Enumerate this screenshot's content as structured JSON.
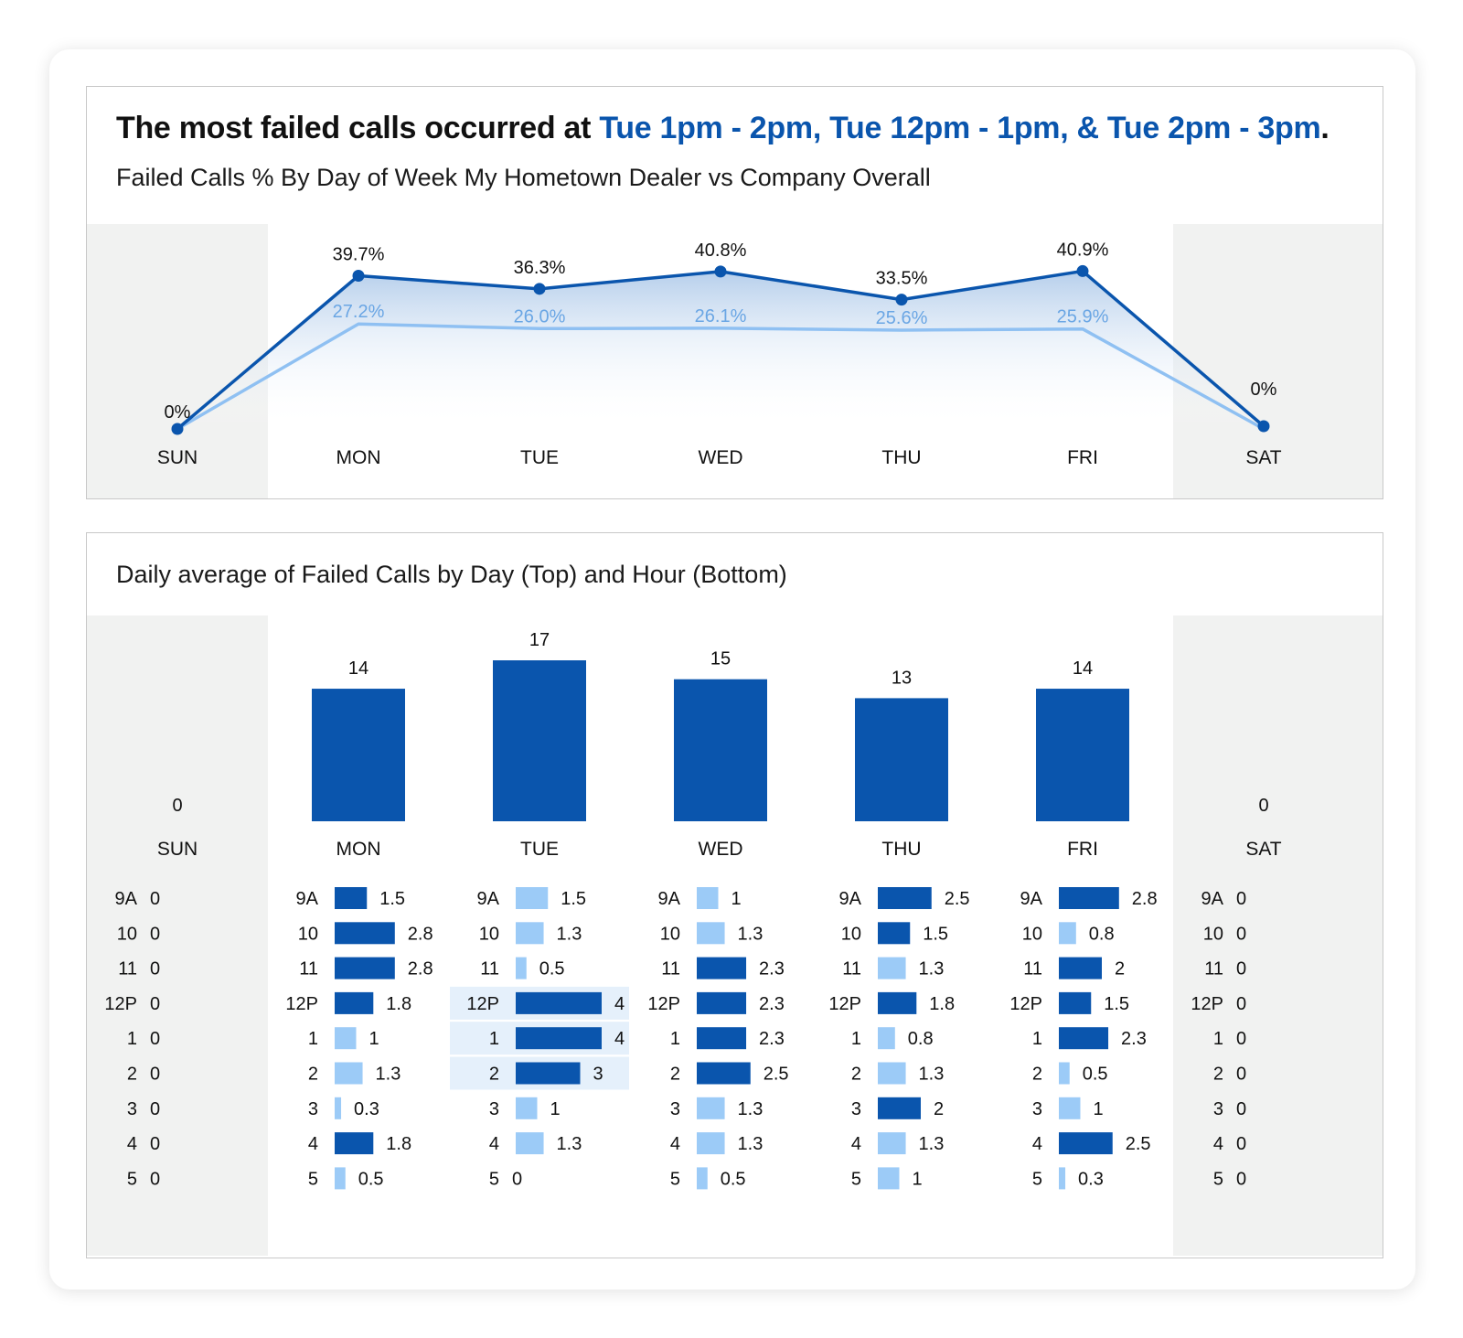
{
  "headline": {
    "prefix": "The most failed calls occurred at ",
    "highlight": "Tue 1pm - 2pm, Tue 12pm - 1pm, & Tue 2pm - 3pm",
    "suffix": "."
  },
  "colors": {
    "dealer": "#0a55ad",
    "company": "#8fc0f2",
    "weekend_band": "#f1f2f1",
    "bar_dark": "#0a55ad",
    "bar_light": "#9ccbf7",
    "highlight_bg": "#e5f0fb",
    "headline_accent": "#0a55ad"
  },
  "chart_data": [
    {
      "type": "line",
      "title": "Failed Calls % By Day of Week My Hometown Dealer vs Company Overall",
      "categories": [
        "SUN",
        "MON",
        "TUE",
        "WED",
        "THU",
        "FRI",
        "SAT"
      ],
      "series": [
        {
          "values": [
            0,
            39.7,
            36.3,
            40.8,
            33.5,
            40.9,
            0
          ],
          "labels": [
            "0%",
            "39.7%",
            "36.3%",
            "40.8%",
            "33.5%",
            "40.9%",
            "0%"
          ]
        },
        {
          "values": [
            0,
            27.2,
            26.0,
            26.1,
            25.6,
            25.9,
            0
          ],
          "labels": [
            "",
            "27.2%",
            "26.0%",
            "26.1%",
            "25.6%",
            "25.9%",
            ""
          ]
        }
      ],
      "weekend_shading": [
        "SUN",
        "SAT"
      ]
    },
    {
      "type": "bar",
      "title": "Daily average of Failed Calls by Day (Top) and Hour (Bottom)",
      "categories": [
        "SUN",
        "MON",
        "TUE",
        "WED",
        "THU",
        "FRI",
        "SAT"
      ],
      "values": [
        0,
        14,
        17,
        15,
        13,
        14,
        0
      ],
      "labels": [
        "0",
        "14",
        "17",
        "15",
        "13",
        "14",
        "0"
      ],
      "hours": [
        "9A",
        "10",
        "11",
        "12P",
        "1",
        "2",
        "3",
        "4",
        "5"
      ],
      "hourly": [
        {
          "day": "SUN",
          "values": [
            0,
            0,
            0,
            0,
            0,
            0,
            0,
            0,
            0
          ],
          "labels": [
            "0",
            "0",
            "0",
            "0",
            "0",
            "0",
            "0",
            "0",
            "0"
          ]
        },
        {
          "day": "MON",
          "values": [
            1.5,
            2.8,
            2.8,
            1.8,
            1,
            1.3,
            0.3,
            1.8,
            0.5
          ],
          "labels": [
            "1.5",
            "2.8",
            "2.8",
            "1.8",
            "1",
            "1.3",
            "0.3",
            "1.8",
            "0.5"
          ]
        },
        {
          "day": "TUE",
          "values": [
            1.5,
            1.3,
            0.5,
            4,
            4,
            3,
            1,
            1.3,
            0
          ],
          "labels": [
            "1.5",
            "1.3",
            "0.5",
            "4",
            "4",
            "3",
            "1",
            "1.3",
            "0"
          ]
        },
        {
          "day": "WED",
          "values": [
            1,
            1.3,
            2.3,
            2.3,
            2.3,
            2.5,
            1.3,
            1.3,
            0.5
          ],
          "labels": [
            "1",
            "1.3",
            "2.3",
            "2.3",
            "2.3",
            "2.5",
            "1.3",
            "1.3",
            "0.5"
          ]
        },
        {
          "day": "THU",
          "values": [
            2.5,
            1.5,
            1.3,
            1.8,
            0.8,
            1.3,
            2,
            1.3,
            1
          ],
          "labels": [
            "2.5",
            "1.5",
            "1.3",
            "1.8",
            "0.8",
            "1.3",
            "2",
            "1.3",
            "1"
          ]
        },
        {
          "day": "FRI",
          "values": [
            2.8,
            0.8,
            2,
            1.5,
            2.3,
            0.5,
            1,
            2.5,
            0.3
          ],
          "labels": [
            "2.8",
            "0.8",
            "2",
            "1.5",
            "2.3",
            "0.5",
            "1",
            "2.5",
            "0.3"
          ]
        },
        {
          "day": "SAT",
          "values": [
            0,
            0,
            0,
            0,
            0,
            0,
            0,
            0,
            0
          ],
          "labels": [
            "0",
            "0",
            "0",
            "0",
            "0",
            "0",
            "0",
            "0",
            "0"
          ]
        }
      ],
      "dark_bar_days": {
        "MON": [
          true,
          true,
          true,
          true,
          false,
          false,
          false,
          true,
          false
        ],
        "TUE": [
          false,
          false,
          false,
          true,
          true,
          true,
          false,
          false,
          false
        ],
        "WED": [
          false,
          false,
          true,
          true,
          true,
          true,
          false,
          false,
          false
        ],
        "THU": [
          true,
          true,
          false,
          true,
          false,
          false,
          true,
          false,
          false
        ],
        "FRI": [
          true,
          false,
          true,
          true,
          true,
          false,
          false,
          true,
          false
        ]
      },
      "highlighted_cells": [
        {
          "day": "TUE",
          "hour": "12P"
        },
        {
          "day": "TUE",
          "hour": "1"
        },
        {
          "day": "TUE",
          "hour": "2"
        }
      ],
      "weekend_shading": [
        "SUN",
        "SAT"
      ]
    }
  ]
}
